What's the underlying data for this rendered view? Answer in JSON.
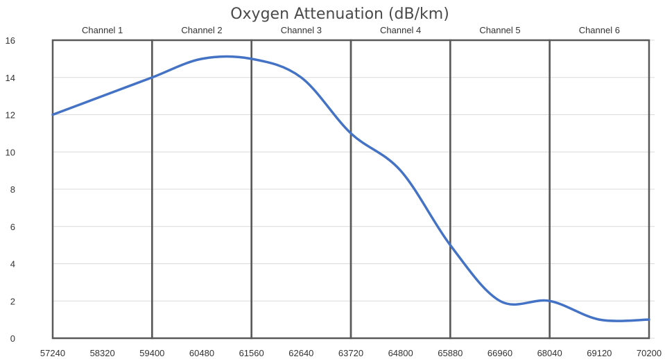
{
  "chart_data": {
    "type": "line",
    "title": "Oxygen Attenuation (dB/km)",
    "xlabel": "",
    "ylabel": "",
    "x": [
      57240,
      58320,
      59400,
      60480,
      61560,
      62640,
      63720,
      64800,
      65880,
      66960,
      68040,
      69120,
      70200
    ],
    "xticks": [
      "57240",
      "58320",
      "59400",
      "60480",
      "61560",
      "62640",
      "63720",
      "64800",
      "65880",
      "66960",
      "68040",
      "69120",
      "70200"
    ],
    "yticks": [
      "0",
      "2",
      "4",
      "6",
      "8",
      "10",
      "12",
      "14",
      "16"
    ],
    "ylim": [
      0,
      16
    ],
    "series": [
      {
        "values": [
          12,
          13,
          14,
          15,
          15,
          14,
          11,
          9,
          5,
          2,
          2,
          1,
          1
        ],
        "color": "#4472C4"
      }
    ],
    "channels": [
      {
        "label": "Channel 1",
        "start": 57240,
        "end": 59400
      },
      {
        "label": "Channel 2",
        "start": 59400,
        "end": 61560
      },
      {
        "label": "Channel 3",
        "start": 61560,
        "end": 63720
      },
      {
        "label": "Channel 4",
        "start": 63720,
        "end": 65880
      },
      {
        "label": "Channel 5",
        "start": 65880,
        "end": 68040
      },
      {
        "label": "Channel 6",
        "start": 68040,
        "end": 70200
      }
    ],
    "grid": true,
    "gridColor": "#d9d9d9",
    "channelBorderColor": "#595959"
  }
}
